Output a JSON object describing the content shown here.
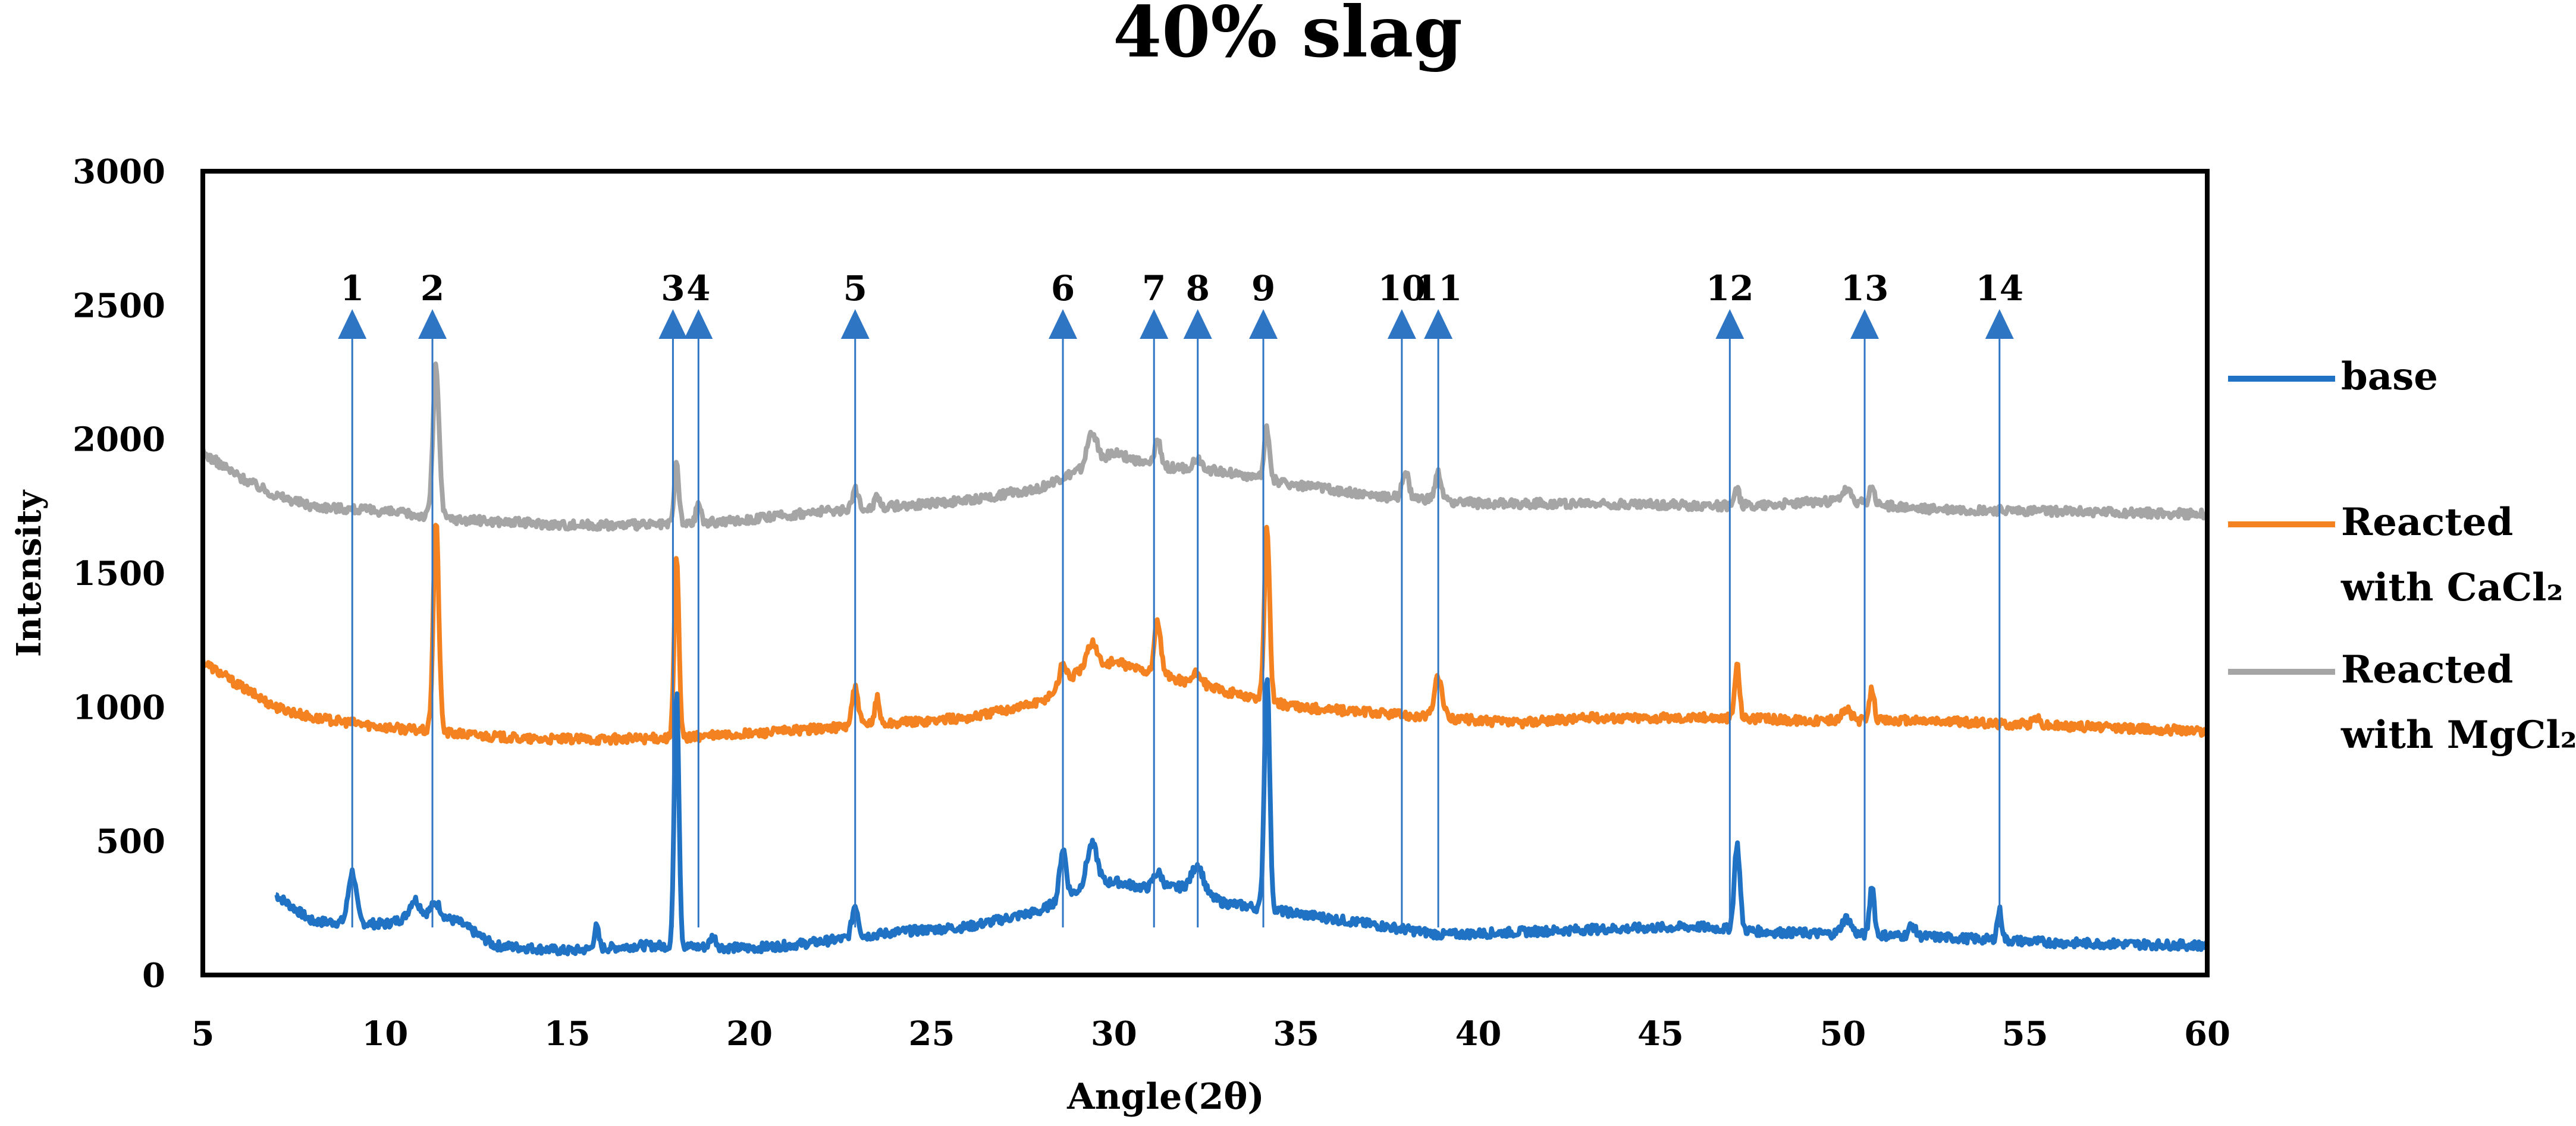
{
  "chart_data": {
    "type": "line",
    "title": "40% slag",
    "xlabel": "Angle(2θ)",
    "ylabel": "Intensity",
    "xlim": [
      5,
      60
    ],
    "ylim": [
      0,
      3000
    ],
    "x_ticks": [
      5,
      10,
      15,
      20,
      25,
      30,
      35,
      40,
      45,
      50,
      55,
      60
    ],
    "y_ticks": [
      0,
      500,
      1000,
      1500,
      2000,
      2500,
      3000
    ],
    "grid": false,
    "legend_position": "right",
    "series": [
      {
        "name": "base",
        "legend_line1": "base",
        "legend_line2": "",
        "color": "#1F72C4",
        "x_start": 7,
        "x_end": 60,
        "baseline": [
          [
            7,
            300
          ],
          [
            8,
            200
          ],
          [
            10,
            190
          ],
          [
            11,
            230
          ],
          [
            12,
            200
          ],
          [
            13,
            110
          ],
          [
            15,
            90
          ],
          [
            17,
            110
          ],
          [
            20,
            100
          ],
          [
            21,
            110
          ],
          [
            22,
            125
          ],
          [
            24,
            160
          ],
          [
            26,
            180
          ],
          [
            28,
            240
          ],
          [
            28.7,
            300
          ],
          [
            30,
            350
          ],
          [
            31,
            320
          ],
          [
            32,
            330
          ],
          [
            33,
            270
          ],
          [
            35,
            230
          ],
          [
            37,
            190
          ],
          [
            39,
            150
          ],
          [
            43,
            170
          ],
          [
            46,
            180
          ],
          [
            48,
            160
          ],
          [
            52,
            145
          ],
          [
            56,
            120
          ],
          [
            60,
            110
          ]
        ],
        "peaks": [
          [
            9.1,
            190,
            0.25
          ],
          [
            10.8,
            60,
            0.3
          ],
          [
            11.4,
            50,
            0.3
          ],
          [
            15.8,
            80,
            0.15
          ],
          [
            18.0,
            960,
            0.15
          ],
          [
            19.0,
            40,
            0.2
          ],
          [
            22.9,
            120,
            0.2
          ],
          [
            28.6,
            180,
            0.2
          ],
          [
            29.4,
            160,
            0.35
          ],
          [
            31.2,
            60,
            0.3
          ],
          [
            32.3,
            100,
            0.35
          ],
          [
            34.2,
            880,
            0.17
          ],
          [
            47.1,
            320,
            0.18
          ],
          [
            50.1,
            60,
            0.3
          ],
          [
            50.8,
            190,
            0.15
          ],
          [
            51.9,
            40,
            0.2
          ],
          [
            54.3,
            110,
            0.15
          ]
        ]
      },
      {
        "name": "Reacted with CaCl2",
        "legend_line1": "Reacted",
        "legend_line2": "with CaCl₂",
        "color": "#F58220",
        "x_start": 5,
        "x_end": 60,
        "baseline": [
          [
            5,
            1170
          ],
          [
            6,
            1080
          ],
          [
            7,
            1000
          ],
          [
            8,
            960
          ],
          [
            10,
            925
          ],
          [
            12,
            900
          ],
          [
            14,
            880
          ],
          [
            16,
            880
          ],
          [
            18,
            885
          ],
          [
            20,
            900
          ],
          [
            22,
            920
          ],
          [
            24,
            940
          ],
          [
            26,
            960
          ],
          [
            28,
            1020
          ],
          [
            29,
            1130
          ],
          [
            30,
            1170
          ],
          [
            31,
            1130
          ],
          [
            33,
            1060
          ],
          [
            35,
            1000
          ],
          [
            37,
            980
          ],
          [
            39,
            960
          ],
          [
            41,
            940
          ],
          [
            43,
            960
          ],
          [
            47,
            960
          ],
          [
            49,
            950
          ],
          [
            52,
            950
          ],
          [
            56,
            930
          ],
          [
            60,
            910
          ]
        ],
        "peaks": [
          [
            11.4,
            780,
            0.18
          ],
          [
            18.0,
            670,
            0.15
          ],
          [
            22.9,
            140,
            0.2
          ],
          [
            23.5,
            100,
            0.15
          ],
          [
            28.6,
            80,
            0.2
          ],
          [
            29.4,
            100,
            0.3
          ],
          [
            31.2,
            200,
            0.2
          ],
          [
            32.3,
            40,
            0.3
          ],
          [
            34.2,
            650,
            0.17
          ],
          [
            38.9,
            150,
            0.25
          ],
          [
            47.1,
            200,
            0.15
          ],
          [
            50.1,
            40,
            0.3
          ],
          [
            50.8,
            120,
            0.15
          ],
          [
            55.3,
            30,
            0.2
          ]
        ]
      },
      {
        "name": "Reacted with MgCl2",
        "legend_line1": "Reacted",
        "legend_line2": "with MgCl₂",
        "color": "#A5A5A5",
        "x_start": 5,
        "x_end": 60,
        "baseline": [
          [
            5,
            1950
          ],
          [
            6,
            1860
          ],
          [
            7,
            1790
          ],
          [
            8,
            1750
          ],
          [
            10,
            1730
          ],
          [
            12,
            1700
          ],
          [
            15,
            1680
          ],
          [
            18,
            1680
          ],
          [
            20,
            1700
          ],
          [
            22,
            1730
          ],
          [
            24,
            1750
          ],
          [
            26,
            1770
          ],
          [
            28,
            1820
          ],
          [
            29,
            1880
          ],
          [
            30,
            1950
          ],
          [
            31,
            1900
          ],
          [
            33,
            1880
          ],
          [
            35,
            1830
          ],
          [
            37,
            1790
          ],
          [
            40,
            1760
          ],
          [
            43,
            1760
          ],
          [
            47,
            1750
          ],
          [
            50,
            1770
          ],
          [
            52,
            1740
          ],
          [
            56,
            1730
          ],
          [
            60,
            1720
          ]
        ],
        "peaks": [
          [
            11.4,
            560,
            0.2
          ],
          [
            18.0,
            230,
            0.15
          ],
          [
            18.6,
            80,
            0.15
          ],
          [
            22.9,
            70,
            0.2
          ],
          [
            23.5,
            50,
            0.15
          ],
          [
            29.4,
            120,
            0.3
          ],
          [
            31.2,
            100,
            0.2
          ],
          [
            32.3,
            40,
            0.3
          ],
          [
            34.2,
            190,
            0.17
          ],
          [
            38.0,
            100,
            0.2
          ],
          [
            38.9,
            100,
            0.2
          ],
          [
            47.1,
            60,
            0.15
          ],
          [
            50.1,
            40,
            0.3
          ],
          [
            50.8,
            70,
            0.15
          ]
        ]
      }
    ],
    "annotations": [
      {
        "label": "1",
        "x": 9.1
      },
      {
        "label": "2",
        "x": 11.3
      },
      {
        "label": "3",
        "x": 17.9
      },
      {
        "label": "4",
        "x": 18.6
      },
      {
        "label": "5",
        "x": 22.9
      },
      {
        "label": "6",
        "x": 28.6
      },
      {
        "label": "7",
        "x": 31.1
      },
      {
        "label": "8",
        "x": 32.3
      },
      {
        "label": "9",
        "x": 34.1
      },
      {
        "label": "10",
        "x": 37.9
      },
      {
        "label": "11",
        "x": 38.9
      },
      {
        "label": "12",
        "x": 46.9
      },
      {
        "label": "13",
        "x": 50.6
      },
      {
        "label": "14",
        "x": 54.3
      }
    ]
  }
}
